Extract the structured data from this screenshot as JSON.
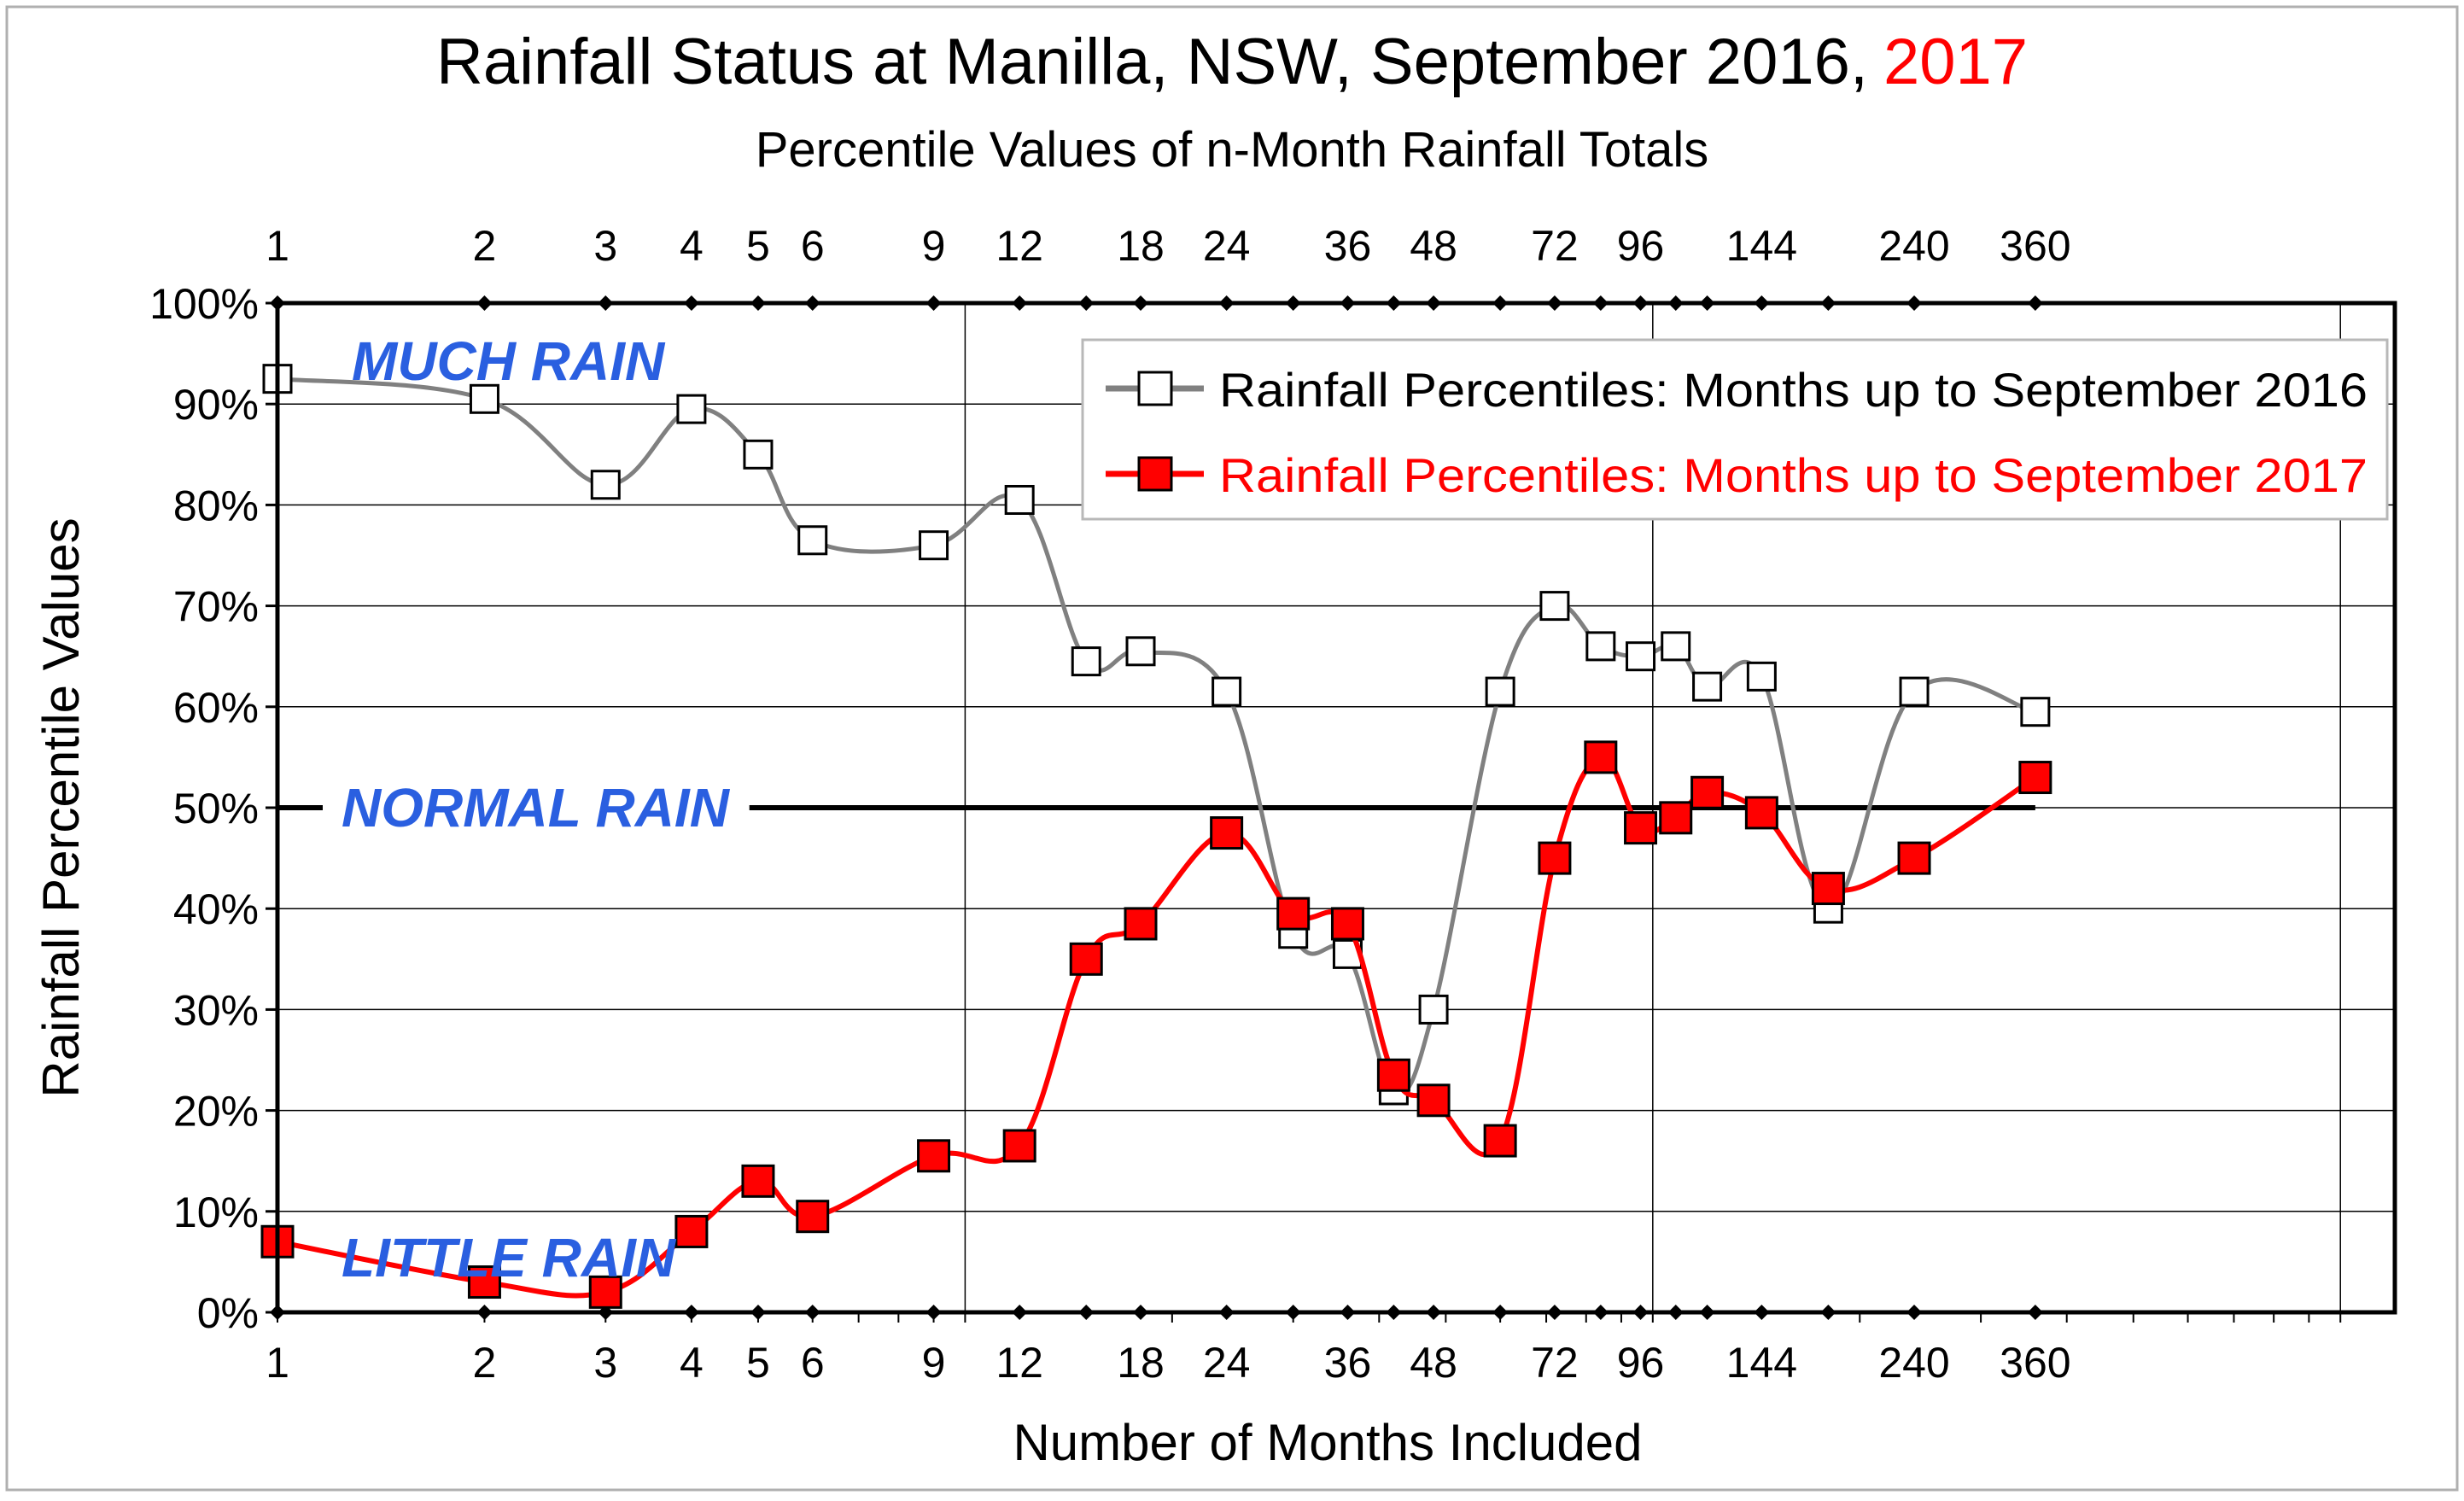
{
  "chart_data": {
    "type": "line",
    "title_main": "Rainfall Status at Manilla, NSW, September 2016,",
    "title_highlight": "2017",
    "subtitle": "Percentile Values of n-Month Rainfall  Totals",
    "xlabel": "Number of Months Included",
    "ylabel": "Rainfall Percentile Values",
    "x_scale": "log",
    "xlim": [
      1,
      1200
    ],
    "ylim": [
      0,
      100
    ],
    "y_ticks": [
      0,
      10,
      20,
      30,
      40,
      50,
      60,
      70,
      80,
      90,
      100
    ],
    "y_tick_labels": [
      "0%",
      "10%",
      "20%",
      "30%",
      "40%",
      "50%",
      "60%",
      "70%",
      "80%",
      "90%",
      "100%"
    ],
    "x_ticks": [
      1,
      2,
      3,
      4,
      5,
      6,
      9,
      12,
      18,
      24,
      36,
      48,
      72,
      96,
      144,
      240,
      360
    ],
    "x_tick_labels": [
      "1",
      "2",
      "3",
      "4",
      "5",
      "6",
      "9",
      "12",
      "18",
      "24",
      "36",
      "48",
      "72",
      "96",
      "144",
      "240",
      "360"
    ],
    "x": [
      1,
      2,
      3,
      4,
      5,
      6,
      9,
      12,
      15,
      18,
      24,
      30,
      36,
      42,
      48,
      60,
      72,
      84,
      96,
      108,
      120,
      144,
      180,
      240,
      360
    ],
    "series": [
      {
        "name": "Rainfall Percentiles: Months up to  September 2016",
        "color": "#808080",
        "marker_fill": "#ffffff",
        "values": [
          92.5,
          90.5,
          82,
          89.5,
          85,
          76.5,
          76,
          80.5,
          64.5,
          65.5,
          61.5,
          37.5,
          35.5,
          22,
          30,
          61.5,
          70,
          66,
          65,
          66,
          62,
          63,
          40,
          61.5,
          59.5
        ]
      },
      {
        "name": "Rainfall Percentiles: Months up to  September 2017",
        "color": "#ff0000",
        "marker_fill": "#ff0000",
        "values": [
          7,
          3,
          2,
          8,
          13,
          9.5,
          15.5,
          16.5,
          35,
          38.5,
          47.5,
          39.5,
          38.5,
          23.5,
          21,
          17,
          45,
          55,
          48,
          49,
          51.5,
          49.5,
          42,
          45,
          53
        ]
      }
    ],
    "normal_line_value": 50,
    "annotations": {
      "much_rain": "MUCH RAIN",
      "normal_rain": "NORMAL RAIN",
      "little_rain": "LITTLE RAIN"
    },
    "grid": true,
    "legend_position": "top-right"
  }
}
